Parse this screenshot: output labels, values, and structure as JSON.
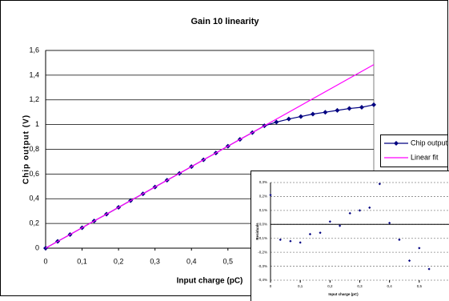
{
  "chart_data": [
    {
      "type": "line",
      "title": "Gain 10 linearity",
      "xlabel": "Input charge (pC)",
      "ylabel": "Chip output (V)",
      "xlim": [
        0,
        0.9
      ],
      "ylim": [
        0,
        1.6
      ],
      "xticks": [
        0,
        {
          "value": 0.1,
          "label": "0,1"
        },
        {
          "value": 0.2,
          "label": "0,2"
        },
        {
          "value": 0.3,
          "label": "0,3"
        },
        {
          "value": 0.4,
          "label": "0,4"
        },
        {
          "value": 0.5,
          "label": "0,5"
        }
      ],
      "yticks": [
        0,
        {
          "value": 0.2,
          "label": "0,2"
        },
        {
          "value": 0.4,
          "label": "0,4"
        },
        {
          "value": 0.6,
          "label": "0,6"
        },
        {
          "value": 0.8,
          "label": "0,8"
        },
        {
          "value": 1,
          "label": "1"
        },
        {
          "value": 1.2,
          "label": "1,2"
        },
        {
          "value": 1.4,
          "label": "1,4"
        },
        {
          "value": 1.6,
          "label": "1,6"
        }
      ],
      "grid": true,
      "legend": "right",
      "series": [
        {
          "name": "Chip output",
          "color": "#000080",
          "markers": true,
          "x": [
            0,
            0.033,
            0.067,
            0.1,
            0.133,
            0.167,
            0.2,
            0.233,
            0.267,
            0.3,
            0.333,
            0.367,
            0.4,
            0.433,
            0.467,
            0.5,
            0.533,
            0.567,
            0.6,
            0.633,
            0.667,
            0.7,
            0.733,
            0.767,
            0.8,
            0.833,
            0.867,
            0.9
          ],
          "values": [
            0,
            0.055,
            0.11,
            0.165,
            0.22,
            0.275,
            0.33,
            0.385,
            0.44,
            0.495,
            0.55,
            0.605,
            0.66,
            0.715,
            0.77,
            0.825,
            0.88,
            0.935,
            0.99,
            1.02,
            1.045,
            1.065,
            1.085,
            1.1,
            1.115,
            1.13,
            1.14,
            1.16
          ]
        },
        {
          "name": "Linear fit",
          "color": "#ff00ff",
          "markers": false,
          "x": [
            0,
            0.9
          ],
          "values": [
            0,
            1.485
          ]
        }
      ]
    },
    {
      "type": "scatter",
      "xlabel": "Input charge (pC)",
      "ylabel": "Residuals",
      "xlim": [
        0,
        0.6
      ],
      "ylim": [
        -0.4,
        0.3
      ],
      "xticks": [
        0,
        {
          "value": 0.1,
          "label": "0,1"
        },
        {
          "value": 0.2,
          "label": "0,2"
        },
        {
          "value": 0.3,
          "label": "0,3"
        },
        {
          "value": 0.4,
          "label": "0,4"
        },
        {
          "value": 0.5,
          "label": "0,5"
        }
      ],
      "yticks": [
        {
          "value": 0.3,
          "label": "0,3%"
        },
        {
          "value": 0.2,
          "label": "0,2%"
        },
        {
          "value": 0.1,
          "label": "0,1%"
        },
        {
          "value": 0,
          "label": "0,0%"
        },
        {
          "value": -0.1,
          "label": "-0,1%"
        },
        {
          "value": -0.2,
          "label": "-0,2%"
        },
        {
          "value": -0.3,
          "label": "-0,3%"
        },
        {
          "value": -0.4,
          "label": "-0,4%"
        }
      ],
      "grid": true,
      "series": [
        {
          "name": "Residuals",
          "color": "#000080",
          "x": [
            0,
            0.033,
            0.067,
            0.1,
            0.133,
            0.167,
            0.2,
            0.233,
            0.267,
            0.3,
            0.333,
            0.367,
            0.4,
            0.433,
            0.467,
            0.5,
            0.533
          ],
          "values": [
            0.21,
            -0.11,
            -0.12,
            -0.13,
            -0.07,
            -0.06,
            0.02,
            -0.01,
            0.08,
            0.1,
            0.12,
            0.29,
            0.01,
            -0.11,
            -0.26,
            -0.17,
            -0.32
          ]
        }
      ]
    }
  ]
}
